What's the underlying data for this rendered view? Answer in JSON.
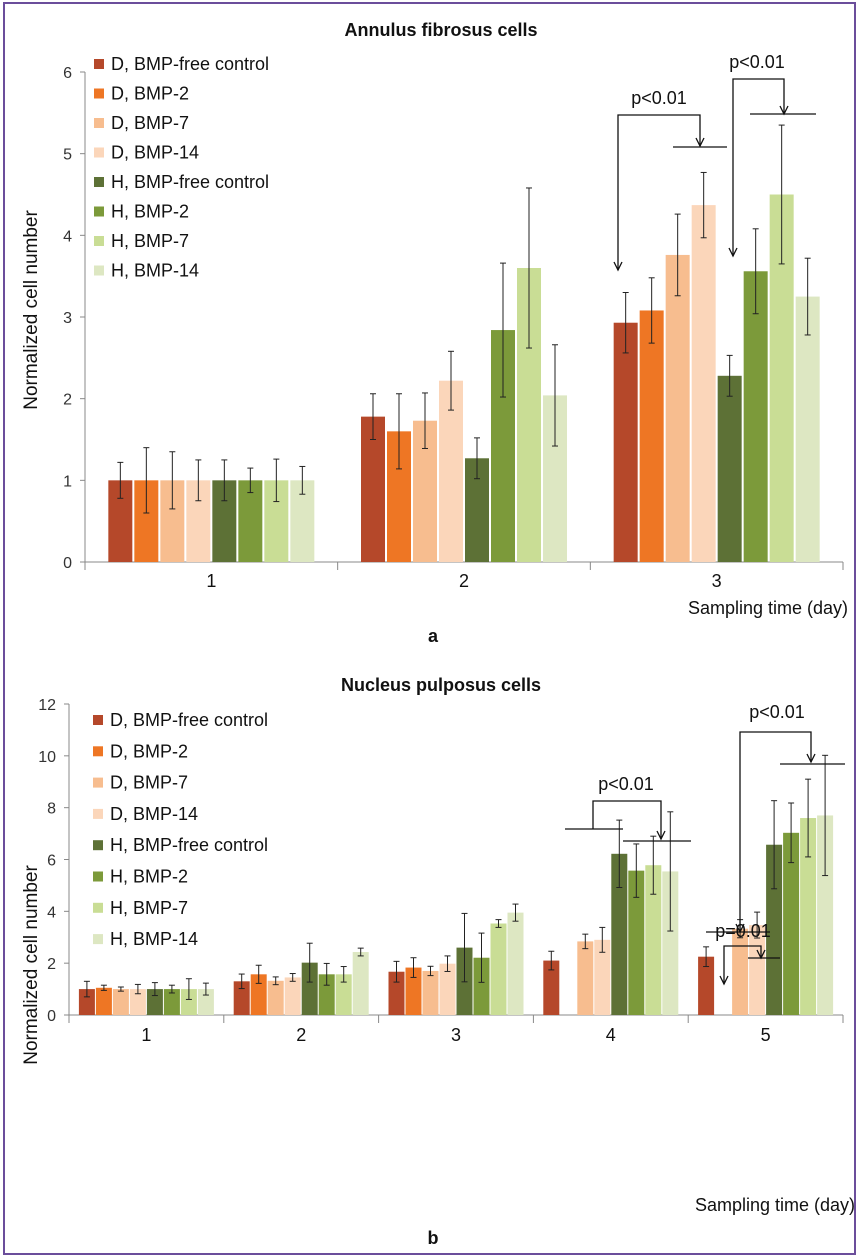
{
  "colors": {
    "frame": "#6b4e9b",
    "series": [
      "#b5482a",
      "#ee7624",
      "#f7bd8f",
      "#fbd6ba",
      "#5d7136",
      "#7c9a3a",
      "#c9dd95",
      "#dde7c2"
    ]
  },
  "series_names": [
    "D, BMP-free control",
    "D, BMP-2",
    "D, BMP-7",
    "D, BMP-14",
    "H, BMP-free control",
    "H, BMP-2",
    "H, BMP-7",
    "H, BMP-14"
  ],
  "chart_data": [
    {
      "type": "bar",
      "title": "Annulus fibrosus cells",
      "panel_label": "a",
      "xlabel": "Sampling time (day)",
      "ylabel": "Normalized cell number",
      "ylim": [
        0,
        6
      ],
      "yticks": [
        0,
        1,
        2,
        3,
        4,
        5,
        6
      ],
      "categories": [
        "1",
        "2",
        "3"
      ],
      "legend_position": "top-left",
      "grid": false,
      "series": [
        {
          "name": "D, BMP-free control",
          "values": [
            1.0,
            1.78,
            2.93
          ],
          "errors": [
            0.22,
            0.28,
            0.37
          ]
        },
        {
          "name": "D, BMP-2",
          "values": [
            1.0,
            1.6,
            3.08
          ],
          "errors": [
            0.4,
            0.46,
            0.4
          ]
        },
        {
          "name": "D, BMP-7",
          "values": [
            1.0,
            1.73,
            3.76
          ],
          "errors": [
            0.35,
            0.34,
            0.5
          ]
        },
        {
          "name": "D, BMP-14",
          "values": [
            1.0,
            2.22,
            4.37
          ],
          "errors": [
            0.25,
            0.36,
            0.4
          ]
        },
        {
          "name": "H, BMP-free control",
          "values": [
            1.0,
            1.27,
            2.28
          ],
          "errors": [
            0.25,
            0.25,
            0.25
          ]
        },
        {
          "name": "H, BMP-2",
          "values": [
            1.0,
            2.84,
            3.56
          ],
          "errors": [
            0.15,
            0.82,
            0.52
          ]
        },
        {
          "name": "H, BMP-7",
          "values": [
            1.0,
            3.6,
            4.5
          ],
          "errors": [
            0.26,
            0.98,
            0.85
          ]
        },
        {
          "name": "H, BMP-14",
          "values": [
            1.0,
            2.04,
            3.25
          ],
          "errors": [
            0.17,
            0.62,
            0.47
          ]
        }
      ],
      "annotations": [
        "p<0.01",
        "p<0.01"
      ]
    },
    {
      "type": "bar",
      "title": "Nucleus pulposus cells",
      "panel_label": "b",
      "xlabel": "Sampling time (day)",
      "ylabel": "Normalized cell number",
      "ylim": [
        0,
        12
      ],
      "yticks": [
        0,
        2,
        4,
        6,
        8,
        10,
        12
      ],
      "categories": [
        "1",
        "2",
        "3",
        "4",
        "5"
      ],
      "legend_position": "top-left",
      "grid": false,
      "series": [
        {
          "name": "D, BMP-free control",
          "values": [
            1.0,
            1.3,
            1.67,
            2.1,
            2.25
          ],
          "errors": [
            0.3,
            0.28,
            0.4,
            0.36,
            0.38
          ]
        },
        {
          "name": "D, BMP-2",
          "values": [
            1.05,
            1.57,
            1.83,
            null,
            null
          ],
          "errors": [
            0.1,
            0.35,
            0.38,
            null,
            null
          ]
        },
        {
          "name": "D, BMP-7",
          "values": [
            1.0,
            1.32,
            1.7,
            2.84,
            3.33
          ],
          "errors": [
            0.08,
            0.15,
            0.18,
            0.28,
            0.35
          ]
        },
        {
          "name": "D, BMP-14",
          "values": [
            1.0,
            1.45,
            1.98,
            2.9,
            3.47
          ],
          "errors": [
            0.18,
            0.15,
            0.3,
            0.48,
            0.5
          ]
        },
        {
          "name": "H, BMP-free control",
          "values": [
            1.0,
            2.02,
            2.6,
            6.22,
            6.57
          ],
          "errors": [
            0.25,
            0.75,
            1.32,
            1.3,
            1.7
          ]
        },
        {
          "name": "H, BMP-2",
          "values": [
            1.0,
            1.57,
            2.21,
            5.57,
            7.03
          ],
          "errors": [
            0.15,
            0.42,
            0.95,
            1.03,
            1.15
          ]
        },
        {
          "name": "H, BMP-7",
          "values": [
            1.0,
            1.57,
            3.53,
            5.78,
            7.6
          ],
          "errors": [
            0.4,
            0.3,
            0.15,
            1.12,
            1.5
          ]
        },
        {
          "name": "H, BMP-14",
          "values": [
            1.0,
            2.43,
            3.95,
            5.54,
            7.7
          ],
          "errors": [
            0.23,
            0.15,
            0.33,
            2.3,
            2.32
          ]
        }
      ],
      "annotations": [
        "p<0.01",
        "p<0.01",
        "p=0.01"
      ]
    }
  ]
}
